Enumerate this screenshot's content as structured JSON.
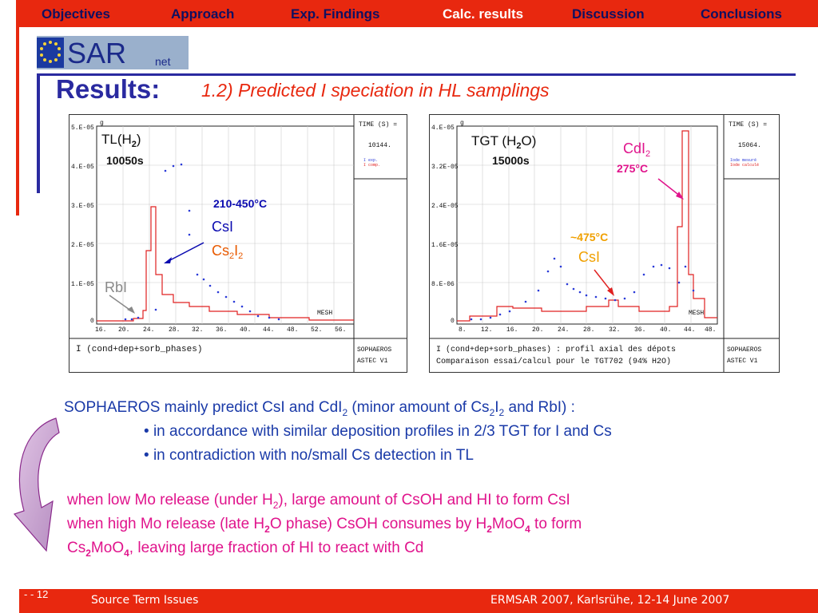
{
  "nav": {
    "items": [
      {
        "label": "Objectives",
        "active": false
      },
      {
        "label": "Approach",
        "active": false
      },
      {
        "label": "Exp. Findings",
        "active": false
      },
      {
        "label": "Calc. results",
        "active": true
      },
      {
        "label": "Discussion",
        "active": false
      },
      {
        "label": "Conclusions",
        "active": false
      }
    ]
  },
  "logo": {
    "text": "SARnet",
    "main": "SAR",
    "sub": "net"
  },
  "header": {
    "title": "Results:",
    "subtitle": "1.2) Predicted I speciation in HL samplings"
  },
  "plot_left": {
    "time_label": "TIME (S) =",
    "time_value": "10144.",
    "legend": [
      "I exp.",
      "I comp."
    ],
    "panel_label_1": "SOPHAEROS",
    "panel_label_2": "ASTEC V1",
    "bottom_label": "I (cond+dep+sorb_phases)",
    "mesh_label": "MESH",
    "g_label": "g",
    "yticks": [
      "5.E-05",
      "4.E-05",
      "3.E-05",
      "2.E-05",
      "1.E-05",
      "0"
    ],
    "xticks": [
      "16.",
      "20.",
      "24.",
      "28.",
      "32.",
      "36.",
      "40.",
      "44.",
      "48.",
      "52.",
      "56."
    ],
    "title_main": "TL(H",
    "title_sub": "2",
    "title_close": ")",
    "time_ann": "10050s",
    "temp_ann": "210-450°C",
    "species_1": "CsI",
    "species_2_main": "Cs",
    "species_2_sub1": "2",
    "species_2_mid": "I",
    "species_2_sub2": "2",
    "species_3": "RbI"
  },
  "plot_right": {
    "time_label": "TIME (S) =",
    "time_value": "15064.",
    "legend": [
      "Iode mesuré",
      "Iode calculé"
    ],
    "panel_label_1": "SOPHAEROS",
    "panel_label_2": "ASTEC V1",
    "bottom_label_1": "I (cond+dep+sorb_phases) :  profil axial des dépots",
    "bottom_label_2": "Comparaison essai/calcul pour le TGT702 (94% H2O)",
    "mesh_label": "MESH",
    "g_label": "g",
    "yticks": [
      "4.E-05",
      "3.2E-05",
      "2.4E-05",
      "1.6E-05",
      "8.E-06",
      "0"
    ],
    "xticks": [
      "8.",
      "12.",
      "16.",
      "20.",
      "24.",
      "28.",
      "32.",
      "36.",
      "40.",
      "44.",
      "48."
    ],
    "title_main": "TGT (H",
    "title_sub": "2",
    "title_close": "O)",
    "time_ann": "15000s",
    "species_1_main": "CdI",
    "species_1_sub": "2",
    "temp_ann_1": "275°C",
    "temp_ann_2": "~475°C",
    "species_2": "CsI"
  },
  "body": {
    "line1_a": "SOPHAEROS mainly predict CsI and CdI",
    "line1_s1": "2",
    "line1_b": " (minor amount of Cs",
    "line1_s2": "2",
    "line1_c": "I",
    "line1_s3": "2",
    "line1_d": " and RbI) :",
    "bullet1": "in accordance with similar deposition profiles in 2/3 TGT for I and Cs",
    "bullet2": "in contradiction with no/small Cs detection in TL",
    "bullet_char": "•",
    "p2_l1_a": "when low Mo release (under H",
    "p2_l1_s": "2",
    "p2_l1_b": "), large amount of CsOH and HI to form CsI",
    "p2_l2_a": "when high Mo release (late H",
    "p2_l2_s": "2",
    "p2_l2_b": "O phase) CsOH consumes by H",
    "p2_l2_s2": "2",
    "p2_l2_c": "MoO",
    "p2_l2_s3": "4",
    "p2_l2_d": " to form",
    "p2_l3_a": "Cs",
    "p2_l3_s": "2",
    "p2_l3_b": "MoO",
    "p2_l3_s2": "4",
    "p2_l3_c": ", leaving large fraction of HI to react with Cd"
  },
  "footer": {
    "page": "- - 12",
    "left": "Source Term Issues",
    "right": "ERMSAR 2007, Karlsrühe, 12-14 June 2007"
  },
  "colors": {
    "accent_red": "#e8280f",
    "navy": "#2a2aa0",
    "body_blue": "#1a3aa8",
    "magenta": "#e0148c"
  }
}
